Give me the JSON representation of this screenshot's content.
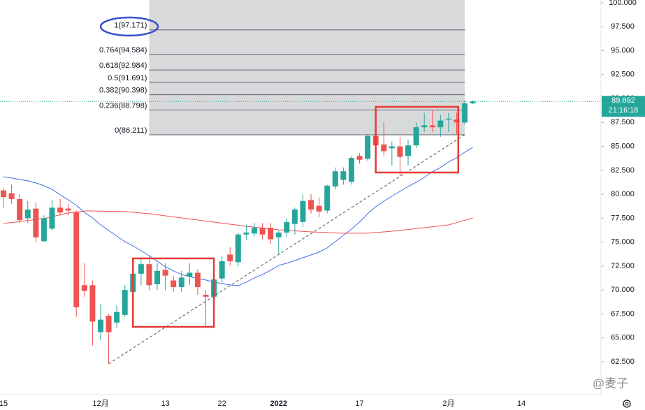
{
  "chart_data": {
    "type": "candlestick",
    "categories": [
      "15",
      null,
      null,
      null,
      null,
      null,
      null,
      null,
      null,
      null,
      null,
      null,
      "12月",
      null,
      null,
      null,
      null,
      null,
      null,
      null,
      "13",
      null,
      null,
      null,
      null,
      null,
      null,
      "22",
      null,
      null,
      null,
      null,
      null,
      null,
      "2022",
      null,
      null,
      null,
      null,
      null,
      null,
      null,
      null,
      null,
      "17",
      null,
      null,
      null,
      null,
      null,
      null,
      null,
      null,
      null,
      null,
      "2月",
      null,
      null,
      null,
      null,
      null,
      null,
      null,
      null,
      "14"
    ],
    "candles": {
      "up_color": "#26a69a",
      "down_color": "#ef5350",
      "open": [
        80.4,
        80.1,
        79.5,
        77.5,
        78.5,
        75.1,
        76.4,
        78.6,
        78.5,
        78.1,
        70.5,
        70.5,
        65.6,
        67.3,
        66.6,
        67.4,
        69.8,
        71.7,
        72.7,
        70.6,
        72.1,
        71,
        70.3,
        71.4,
        71.8,
        69.5,
        69.3,
        71.2,
        73.7,
        72.9,
        75.8,
        75.9,
        76.5,
        76.5,
        75.5,
        76,
        76.9,
        77.1,
        79.4,
        78.8,
        78.3,
        80.8,
        81.5,
        81.3,
        84,
        83.7,
        86.1,
        85.2,
        84.8,
        85,
        84,
        85.1,
        87,
        87.2,
        87,
        87.8,
        87.8,
        87.5,
        89.5,
        null,
        null,
        null,
        null,
        null,
        null
      ],
      "high": [
        80.6,
        81,
        80,
        79.3,
        79.2,
        77.8,
        79.4,
        79.5,
        79,
        78.3,
        72.8,
        71,
        68.5,
        67.5,
        68.4,
        70.5,
        71.7,
        73.2,
        73.5,
        72.8,
        72.8,
        71.5,
        72,
        72.8,
        72.2,
        70,
        71.5,
        73.6,
        74.5,
        76,
        76.8,
        77,
        77,
        77,
        76.2,
        77.5,
        78.6,
        80,
        80,
        79.7,
        81,
        82.8,
        82.8,
        84,
        84.3,
        86.3,
        86.6,
        87.5,
        85.5,
        86,
        85.7,
        87.5,
        88.5,
        88.8,
        88.3,
        88.5,
        88.5,
        89.8,
        89.8,
        null,
        null,
        null,
        null,
        null,
        null
      ],
      "low": [
        78.6,
        79,
        77,
        77,
        75,
        75,
        76.2,
        77.8,
        77.8,
        67.2,
        69.3,
        64.2,
        64.8,
        62.3,
        66,
        67.2,
        67.5,
        70.5,
        70,
        70,
        70,
        69.8,
        69.8,
        70.5,
        69.5,
        66.2,
        69,
        70.8,
        72.5,
        72.5,
        75.2,
        75.6,
        75.3,
        74.8,
        73.8,
        75.5,
        75.8,
        76.6,
        78,
        77.6,
        78,
        80.5,
        81,
        81,
        83.2,
        83.5,
        84,
        84,
        83,
        81.9,
        83,
        84.8,
        86.5,
        86.5,
        86,
        86.5,
        86.3,
        87.3,
        89.4,
        null,
        null,
        null,
        null,
        null,
        null
      ],
      "close": [
        79.7,
        79.5,
        77.3,
        78.4,
        75.5,
        77.5,
        78.6,
        78.1,
        78.3,
        68.2,
        69.9,
        66.7,
        66.9,
        65.6,
        67.7,
        70,
        71.7,
        72.7,
        70.5,
        72,
        71.5,
        70.3,
        71.3,
        71.8,
        70.3,
        69.3,
        71.1,
        73,
        73,
        75.8,
        76,
        76.5,
        75.8,
        75.3,
        76,
        77.1,
        78.4,
        79.3,
        78.4,
        78.2,
        80.9,
        82.4,
        82.4,
        83.8,
        83.6,
        86.1,
        85.1,
        84.5,
        85,
        83.9,
        85.1,
        87,
        87.2,
        87,
        87.7,
        87.9,
        87.5,
        89.5,
        89.692,
        null,
        null,
        null,
        null,
        null,
        null
      ]
    },
    "series": [
      {
        "color": "#3d6fe6",
        "values": [
          81.83,
          81.69,
          81.54,
          81.4,
          81.18,
          80.89,
          80.52,
          79.94,
          79.43,
          78.84,
          78.11,
          77.53,
          76.8,
          76.22,
          75.63,
          75.05,
          74.61,
          74.1,
          73.59,
          73.01,
          72.42,
          71.99,
          71.62,
          71.4,
          71.18,
          71.04,
          70.82,
          70.67,
          70.53,
          70.45,
          70.82,
          71.26,
          71.62,
          72.06,
          72.57,
          72.79,
          73.08,
          73.37,
          73.66,
          73.95,
          74.39,
          75.05,
          75.71,
          76.36,
          77.09,
          77.97,
          78.7,
          79.28,
          79.79,
          80.3,
          80.81,
          81.25,
          81.76,
          82.35,
          82.78,
          83.37,
          83.8,
          84.39,
          84.9,
          null,
          null,
          null,
          null,
          null,
          null
        ]
      },
      {
        "color": "#f0504f",
        "values": [
          76.95,
          77.05,
          77.15,
          77.25,
          77.36,
          77.46,
          77.65,
          77.85,
          78.04,
          78.15,
          78.26,
          78.25,
          78.24,
          78.22,
          78.21,
          78.19,
          78.12,
          78.04,
          77.97,
          77.86,
          77.75,
          77.64,
          77.53,
          77.42,
          77.31,
          77.2,
          77.09,
          76.98,
          76.87,
          76.76,
          76.65,
          76.56,
          76.47,
          76.38,
          76.29,
          76.23,
          76.18,
          76.12,
          76.07,
          76.03,
          76.0,
          75.96,
          75.93,
          75.93,
          75.93,
          75.93,
          76.0,
          76.07,
          76.14,
          76.23,
          76.32,
          76.42,
          76.51,
          76.61,
          76.7,
          76.8,
          77.04,
          77.29,
          77.53,
          null,
          null,
          null,
          null,
          null,
          null
        ]
      }
    ],
    "fib": {
      "x": [
        18,
        57
      ],
      "color": "#d8d9db",
      "levels": [
        {
          "price": 97.171,
          "label": "1(97.171)"
        },
        {
          "price": 94.584,
          "label": "0.764(94.584)"
        },
        {
          "price": 92.984,
          "label": "0.618(92.984)"
        },
        {
          "price": 91.691,
          "label": "0.5(91.691)"
        },
        {
          "price": 90.398,
          "label": "0.382(90.398)"
        },
        {
          "price": 88.798,
          "label": "0.236(88.798)"
        },
        {
          "price": 86.211,
          "label": "0(86.211)"
        }
      ]
    },
    "trendline": {
      "x": [
        13,
        57
      ],
      "y": [
        62.3,
        86.211
      ]
    },
    "boxes": [
      {
        "x": [
          16,
          26
        ],
        "y": [
          66.15,
          73.3
        ]
      },
      {
        "x": [
          46,
          56.2
        ],
        "y": [
          82.27,
          89.13
        ]
      }
    ],
    "last_price": {
      "value": 89.692,
      "label": "89.692",
      "countdown": "21:16:18"
    },
    "watermark": "@麦子",
    "ylim": [
      59.07,
      100.29
    ],
    "yticks": [
      {
        "value": 62.5,
        "label": "62.500"
      },
      {
        "value": 65,
        "label": "65.000"
      },
      {
        "value": 67.5,
        "label": "67.500"
      },
      {
        "value": 70,
        "label": "70.000"
      },
      {
        "value": 72.5,
        "label": "72.500"
      },
      {
        "value": 75,
        "label": "75.000"
      },
      {
        "value": 77.5,
        "label": "77.500"
      },
      {
        "value": 80,
        "label": "80.000"
      },
      {
        "value": 82.5,
        "label": "82.500"
      },
      {
        "value": 85,
        "label": "85.000"
      },
      {
        "value": 87.5,
        "label": "87.500"
      },
      {
        "value": 90,
        "label": "90.000"
      },
      {
        "value": 92.5,
        "label": "92.500"
      },
      {
        "value": 95,
        "label": "95.000"
      },
      {
        "value": 97.5,
        "label": "97.500"
      },
      {
        "value": 100,
        "label": "100.000"
      }
    ]
  }
}
